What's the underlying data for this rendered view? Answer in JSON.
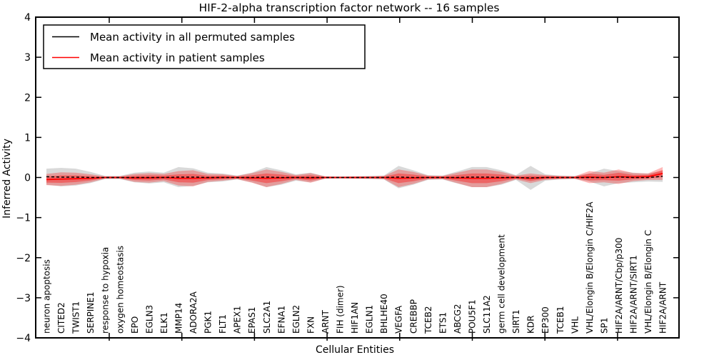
{
  "title": "HIF-2-alpha transcription factor network -- 16 samples",
  "legend": {
    "items": [
      {
        "label": "Mean activity in all permuted samples",
        "color": "#000000"
      },
      {
        "label": "Mean activity in patient samples",
        "color": "#ff0000"
      }
    ]
  },
  "colors": {
    "permuted_band": "rgba(0,0,0,0.15)",
    "patient_band": "rgba(255,0,0,0.28)",
    "patient_band_inner": "rgba(255,0,0,0.35)",
    "permuted_line": "#000000",
    "patient_line": "#ff0000",
    "frame": "#000000"
  },
  "chart_data": {
    "type": "area",
    "title": "HIF-2-alpha transcription factor network -- 16 samples",
    "xlabel": "Cellular Entities",
    "ylabel": "Inferred Activity",
    "ylim": [
      -4,
      4
    ],
    "yticks": [
      4,
      3,
      2,
      1,
      0,
      -1,
      -2,
      -3,
      -4
    ],
    "ytick_labels": [
      "4",
      "3",
      "2",
      "1",
      "0",
      "−1",
      "−2",
      "−3",
      "−4"
    ],
    "grid": false,
    "legend_position": "upper left",
    "categories": [
      "neuron apoptosis",
      "CITED2",
      "TWIST1",
      "SERPINE1",
      "response to hypoxia",
      "oxygen homeostasis",
      "EPO",
      "EGLN3",
      "ELK1",
      "MMP14",
      "ADORA2A",
      "PGK1",
      "FLT1",
      "APEX1",
      "EPAS1",
      "SLC2A1",
      "EFNA1",
      "EGLN2",
      "FXN",
      "ARNT",
      "FIH (dimer)",
      "HIF1AN",
      "EGLN1",
      "BHLHE40",
      "VEGFA",
      "CREBBP",
      "TCEB2",
      "ETS1",
      "ABCG2",
      "POU5F1",
      "SLC11A2",
      "germ cell development",
      "SIRT1",
      "KDR",
      "EP300",
      "TCEB1",
      "VHL",
      "VHL/Elongin B/Elongin C/HIF2A",
      "SP1",
      "HIF2A/ARNT/Cbp/p300",
      "HIF2A/ARNT/SIRT1",
      "VHL/Elongin B/Elongin C",
      "HIF2A/ARNT"
    ],
    "series": [
      {
        "name": "Mean activity in all permuted samples",
        "color": "#000000",
        "style": "dashed",
        "values": [
          0.02,
          0.01,
          0.01,
          0,
          0,
          0,
          0,
          0,
          0,
          0.01,
          0.01,
          0,
          0,
          0,
          0,
          0.01,
          0,
          0,
          0,
          0,
          0,
          0,
          0,
          0,
          0.01,
          0,
          0,
          0,
          0,
          0.01,
          0.01,
          0,
          0,
          -0.01,
          0,
          0,
          0,
          0,
          0,
          0.01,
          0,
          0,
          0.03
        ]
      },
      {
        "name": "Mean activity in patient samples",
        "color": "#ff0000",
        "style": "solid",
        "values": [
          -0.05,
          -0.04,
          -0.03,
          -0.02,
          0,
          0,
          -0.01,
          -0.01,
          0,
          -0.02,
          -0.02,
          -0.01,
          0,
          0,
          -0.01,
          -0.02,
          -0.01,
          0,
          -0.01,
          0,
          0,
          0,
          0,
          0,
          -0.02,
          -0.01,
          0,
          0,
          -0.01,
          -0.02,
          -0.02,
          -0.01,
          0,
          -0.02,
          0,
          0,
          0,
          0.01,
          0,
          0.02,
          0.01,
          0.02,
          0.1
        ]
      }
    ],
    "bands": [
      {
        "name": "permuted-std-band",
        "halfwidths": [
          0.2,
          0.23,
          0.21,
          0.14,
          0.04,
          0.04,
          0.12,
          0.15,
          0.12,
          0.25,
          0.22,
          0.12,
          0.1,
          0.05,
          0.12,
          0.25,
          0.18,
          0.08,
          0.12,
          0.03,
          0.03,
          0.03,
          0.04,
          0.05,
          0.28,
          0.18,
          0.06,
          0.05,
          0.15,
          0.25,
          0.25,
          0.18,
          0.06,
          0.3,
          0.08,
          0.05,
          0.04,
          0.1,
          0.22,
          0.15,
          0.12,
          0.1,
          0.14
        ]
      },
      {
        "name": "patient-std-band",
        "halfwidths": [
          0.14,
          0.17,
          0.15,
          0.1,
          0.03,
          0.03,
          0.1,
          0.12,
          0.09,
          0.18,
          0.2,
          0.1,
          0.08,
          0.04,
          0.12,
          0.22,
          0.15,
          0.06,
          0.12,
          0.03,
          0.02,
          0.03,
          0.03,
          0.04,
          0.22,
          0.15,
          0.05,
          0.04,
          0.13,
          0.22,
          0.22,
          0.15,
          0.05,
          0.12,
          0.06,
          0.04,
          0.03,
          0.15,
          0.12,
          0.18,
          0.1,
          0.08,
          0.16
        ]
      }
    ]
  }
}
